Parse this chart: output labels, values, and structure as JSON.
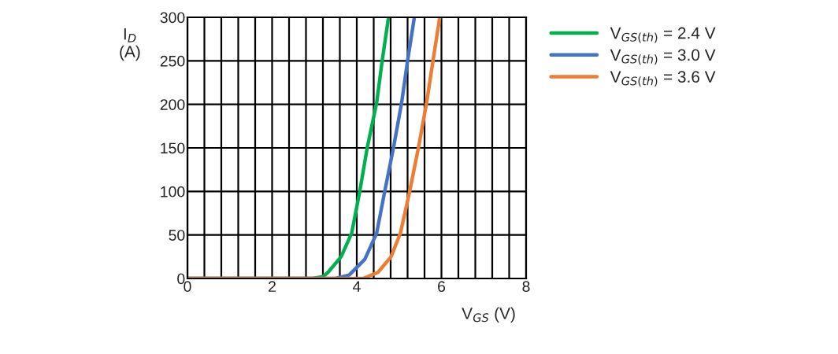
{
  "chart_data": {
    "type": "line",
    "xlabel": "V$_{GS}$ (V)",
    "ylabel": "I$_{D}$\n(A)",
    "xlim": [
      0,
      8
    ],
    "ylim": [
      0,
      300
    ],
    "xticks": [
      0,
      {
        "value": 0.4,
        "label": null
      },
      {
        "value": 0.8,
        "label": null
      },
      {
        "value": 1.2,
        "label": null
      },
      {
        "value": 1.6,
        "label": null
      },
      2,
      {
        "value": 2.4,
        "label": null
      },
      {
        "value": 2.8,
        "label": null
      },
      {
        "value": 3.2,
        "label": null
      },
      {
        "value": 3.6,
        "label": null
      },
      4,
      {
        "value": 4.4,
        "label": null
      },
      {
        "value": 4.8,
        "label": null
      },
      {
        "value": 5.2,
        "label": null
      },
      {
        "value": 5.6,
        "label": null
      },
      6,
      {
        "value": 6.4,
        "label": null
      },
      {
        "value": 6.8,
        "label": null
      },
      {
        "value": 7.2,
        "label": null
      },
      {
        "value": 7.6,
        "label": null
      },
      8
    ],
    "yticks": [
      0,
      50,
      100,
      150,
      200,
      250,
      300
    ],
    "grid": true,
    "legend": "top right",
    "line_style": "solid",
    "series": [
      {
        "name": "V$_{GS(th)}$ = 2.4 V",
        "color": "#00b050",
        "x": [
          0,
          2.96,
          3.2,
          3.32,
          3.63,
          3.88,
          4.07,
          4.25,
          4.47,
          4.6,
          4.75
        ],
        "values": [
          0,
          0,
          2,
          7,
          25,
          52,
          100,
          151,
          202,
          250,
          300
        ]
      },
      {
        "name": "V$_{GS(th)}$ = 3.0 V",
        "color": "#4472c4",
        "x": [
          0,
          3.5,
          3.82,
          4.19,
          4.47,
          4.66,
          4.87,
          5.06,
          5.2,
          5.36
        ],
        "values": [
          0,
          0,
          4,
          22,
          52,
          100,
          151,
          202,
          250,
          300
        ]
      },
      {
        "name": "V$_{GS(th)}$ = 3.6 V",
        "color": "#ed7d31",
        "x": [
          0,
          4.15,
          4.5,
          4.81,
          5.03,
          5.25,
          5.46,
          5.65,
          5.8,
          5.96
        ],
        "values": [
          0,
          0,
          7,
          25,
          52,
          100,
          151,
          202,
          250,
          300
        ]
      }
    ]
  }
}
